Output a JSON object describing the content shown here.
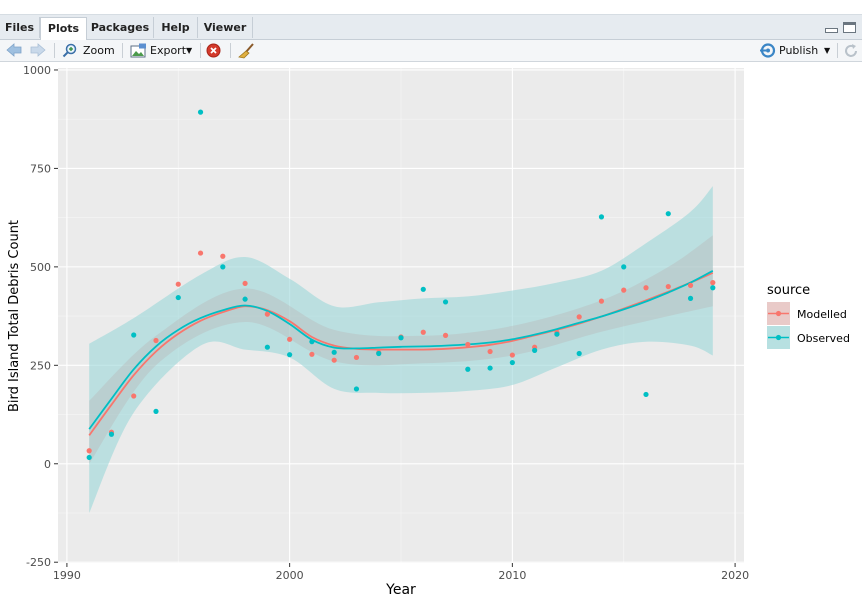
{
  "tabs": [
    {
      "label": "Files",
      "active": false
    },
    {
      "label": "Plots",
      "active": true
    },
    {
      "label": "Packages",
      "active": false
    },
    {
      "label": "Help",
      "active": false
    },
    {
      "label": "Viewer",
      "active": false
    }
  ],
  "toolbar": {
    "zoom_label": "Zoom",
    "export_label": "Export",
    "publish_label": "Publish"
  },
  "icons": {
    "back": "arrow-left-icon",
    "forward": "arrow-right-icon",
    "zoom": "magnifier-icon",
    "export": "export-image-icon",
    "remove": "remove-plot-icon",
    "clear": "broom-icon",
    "publish": "publish-icon",
    "refresh": "refresh-icon",
    "minimize": "minimize-icon",
    "maximize": "maximize-icon"
  },
  "colors": {
    "modelled": "#F8766D",
    "observed": "#00BFC4",
    "panel_bg": "#EBEBEB",
    "grid": "#FFFFFF"
  },
  "chart_data": {
    "type": "scatter",
    "title": "",
    "xlabel": "Year",
    "ylabel": "Bird Island Total Debris Count",
    "xlim": [
      1989.6,
      2020.4
    ],
    "ylim": [
      -252,
      1005
    ],
    "x_ticks": [
      1990,
      2000,
      2010,
      2020
    ],
    "y_ticks": [
      -250,
      0,
      250,
      500,
      750,
      1000
    ],
    "grid": true,
    "smooth": "loess with confidence band",
    "legend": {
      "title": "source",
      "position": "right"
    },
    "series": [
      {
        "name": "Modelled",
        "points": [
          [
            1991,
            33
          ],
          [
            1992,
            80
          ],
          [
            1993,
            172
          ],
          [
            1994,
            313
          ],
          [
            1995,
            456
          ],
          [
            1996,
            535
          ],
          [
            1997,
            527
          ],
          [
            1998,
            458
          ],
          [
            1999,
            380
          ],
          [
            2000,
            316
          ],
          [
            2001,
            278
          ],
          [
            2002,
            263
          ],
          [
            2003,
            270
          ],
          [
            2004,
            282
          ],
          [
            2005,
            322
          ],
          [
            2006,
            334
          ],
          [
            2007,
            326
          ],
          [
            2008,
            303
          ],
          [
            2009,
            285
          ],
          [
            2010,
            276
          ],
          [
            2011,
            296
          ],
          [
            2012,
            333
          ],
          [
            2013,
            373
          ],
          [
            2014,
            413
          ],
          [
            2015,
            441
          ],
          [
            2016,
            447
          ],
          [
            2017,
            450
          ],
          [
            2018,
            453
          ],
          [
            2019,
            460
          ]
        ],
        "smooth": [
          [
            1991,
            72
          ],
          [
            1992,
            150
          ],
          [
            1993,
            225
          ],
          [
            1994,
            285
          ],
          [
            1995,
            330
          ],
          [
            1996,
            363
          ],
          [
            1997,
            385
          ],
          [
            1998,
            400
          ],
          [
            1999,
            390
          ],
          [
            2000,
            362
          ],
          [
            2001,
            322
          ],
          [
            2002,
            300
          ],
          [
            2003,
            292
          ],
          [
            2004,
            290
          ],
          [
            2005,
            290
          ],
          [
            2006,
            290
          ],
          [
            2007,
            292
          ],
          [
            2008,
            296
          ],
          [
            2009,
            302
          ],
          [
            2010,
            312
          ],
          [
            2011,
            326
          ],
          [
            2012,
            340
          ],
          [
            2013,
            356
          ],
          [
            2014,
            374
          ],
          [
            2015,
            394
          ],
          [
            2016,
            415
          ],
          [
            2017,
            437
          ],
          [
            2018,
            460
          ],
          [
            2019,
            485
          ]
        ],
        "band_low": [
          [
            1991,
            0
          ],
          [
            1994,
            250
          ],
          [
            1998,
            360
          ],
          [
            2002,
            260
          ],
          [
            2006,
            255
          ],
          [
            2010,
            275
          ],
          [
            2014,
            335
          ],
          [
            2017,
            375
          ],
          [
            2019,
            400
          ]
        ],
        "band_high": [
          [
            1991,
            160
          ],
          [
            1994,
            325
          ],
          [
            1998,
            445
          ],
          [
            2002,
            340
          ],
          [
            2006,
            325
          ],
          [
            2010,
            350
          ],
          [
            2014,
            415
          ],
          [
            2017,
            500
          ],
          [
            2019,
            580
          ]
        ]
      },
      {
        "name": "Observed",
        "points": [
          [
            1991,
            16
          ],
          [
            1992,
            75
          ],
          [
            1993,
            327
          ],
          [
            1994,
            133
          ],
          [
            1995,
            422
          ],
          [
            1996,
            893
          ],
          [
            1997,
            500
          ],
          [
            1998,
            418
          ],
          [
            1999,
            296
          ],
          [
            2000,
            277
          ],
          [
            2001,
            310
          ],
          [
            2002,
            283
          ],
          [
            2003,
            190
          ],
          [
            2004,
            280
          ],
          [
            2005,
            320
          ],
          [
            2006,
            443
          ],
          [
            2007,
            411
          ],
          [
            2008,
            240
          ],
          [
            2009,
            243
          ],
          [
            2010,
            257
          ],
          [
            2011,
            288
          ],
          [
            2012,
            329
          ],
          [
            2013,
            280
          ],
          [
            2014,
            627
          ],
          [
            2015,
            500
          ],
          [
            2016,
            176
          ],
          [
            2017,
            635
          ],
          [
            2018,
            420
          ],
          [
            2019,
            447
          ]
        ],
        "smooth": [
          [
            1991,
            88
          ],
          [
            1992,
            165
          ],
          [
            1993,
            240
          ],
          [
            1994,
            298
          ],
          [
            1995,
            340
          ],
          [
            1996,
            370
          ],
          [
            1997,
            390
          ],
          [
            1998,
            402
          ],
          [
            1999,
            388
          ],
          [
            2000,
            355
          ],
          [
            2001,
            315
          ],
          [
            2002,
            295
          ],
          [
            2003,
            293
          ],
          [
            2004,
            295
          ],
          [
            2005,
            297
          ],
          [
            2006,
            298
          ],
          [
            2007,
            300
          ],
          [
            2008,
            303
          ],
          [
            2009,
            308
          ],
          [
            2010,
            316
          ],
          [
            2011,
            328
          ],
          [
            2012,
            342
          ],
          [
            2013,
            358
          ],
          [
            2014,
            374
          ],
          [
            2015,
            392
          ],
          [
            2016,
            412
          ],
          [
            2017,
            435
          ],
          [
            2018,
            460
          ],
          [
            2019,
            490
          ]
        ],
        "band_low": [
          [
            1991,
            -125
          ],
          [
            1993,
            130
          ],
          [
            1996,
            300
          ],
          [
            1998,
            290
          ],
          [
            2000,
            270
          ],
          [
            2002,
            190
          ],
          [
            2004,
            180
          ],
          [
            2006,
            180
          ],
          [
            2008,
            185
          ],
          [
            2010,
            200
          ],
          [
            2012,
            245
          ],
          [
            2014,
            290
          ],
          [
            2016,
            310
          ],
          [
            2018,
            300
          ],
          [
            2019,
            275
          ]
        ],
        "band_high": [
          [
            1991,
            305
          ],
          [
            1993,
            370
          ],
          [
            1996,
            480
          ],
          [
            1998,
            525
          ],
          [
            2000,
            470
          ],
          [
            2002,
            400
          ],
          [
            2004,
            410
          ],
          [
            2006,
            420
          ],
          [
            2008,
            425
          ],
          [
            2010,
            440
          ],
          [
            2012,
            460
          ],
          [
            2014,
            490
          ],
          [
            2016,
            560
          ],
          [
            2018,
            640
          ],
          [
            2019,
            705
          ]
        ]
      }
    ]
  }
}
